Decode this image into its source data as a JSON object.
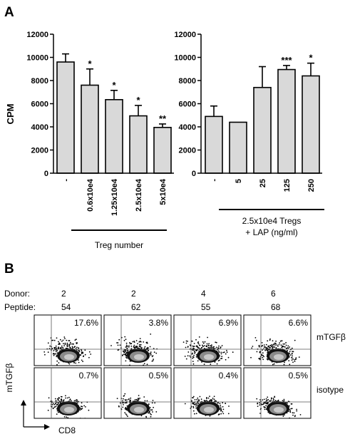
{
  "panel_a": {
    "letter": "A",
    "ylabel": "CPM",
    "group_label_left": "Treg number",
    "group_label_right_line1": "2.5x10e4 Tregs",
    "group_label_right_line2": "+ LAP (ng/ml)"
  },
  "chart_data": [
    {
      "type": "bar",
      "ylabel": "CPM",
      "ylim": [
        0,
        12000
      ],
      "yticks": [
        0,
        2000,
        4000,
        6000,
        8000,
        10000,
        12000
      ],
      "categories": [
        "-",
        "0.6x10e4",
        "1.25x10e4",
        "2.5x10e4",
        "5x10e4"
      ],
      "values": [
        9600,
        7600,
        6350,
        4950,
        3950
      ],
      "errors": [
        700,
        1400,
        800,
        900,
        300
      ],
      "significance": [
        "",
        "*",
        "*",
        "*",
        "**"
      ],
      "xlabel": "Treg number",
      "bar_color": "#d9d9d9"
    },
    {
      "type": "bar",
      "ylim": [
        0,
        12000
      ],
      "yticks": [
        0,
        2000,
        4000,
        6000,
        8000,
        10000,
        12000
      ],
      "categories": [
        "-",
        "5",
        "25",
        "125",
        "250"
      ],
      "values": [
        4900,
        4400,
        7400,
        8950,
        8400
      ],
      "errors": [
        900,
        0,
        1800,
        350,
        1100
      ],
      "significance": [
        "",
        "",
        "",
        "***",
        "*"
      ],
      "xlabel": "2.5x10e4 Tregs + LAP (ng/ml)",
      "bar_color": "#d9d9d9"
    }
  ],
  "panel_b": {
    "letter": "B",
    "donor_label": "Donor:",
    "peptide_label": "Peptide:",
    "columns": [
      {
        "donor": "2",
        "peptide": "54"
      },
      {
        "donor": "2",
        "peptide": "62"
      },
      {
        "donor": "4",
        "peptide": "55"
      },
      {
        "donor": "6",
        "peptide": "68"
      }
    ],
    "rows": [
      {
        "label": "mTGFβ",
        "percents": [
          "17.6%",
          "3.8%",
          "6.9%",
          "6.6%"
        ]
      },
      {
        "label": "isotype",
        "percents": [
          "0.7%",
          "0.5%",
          "0.4%",
          "0.5%"
        ]
      }
    ],
    "y_axis_label": "mTGFβ",
    "x_axis_label": "CD8"
  }
}
